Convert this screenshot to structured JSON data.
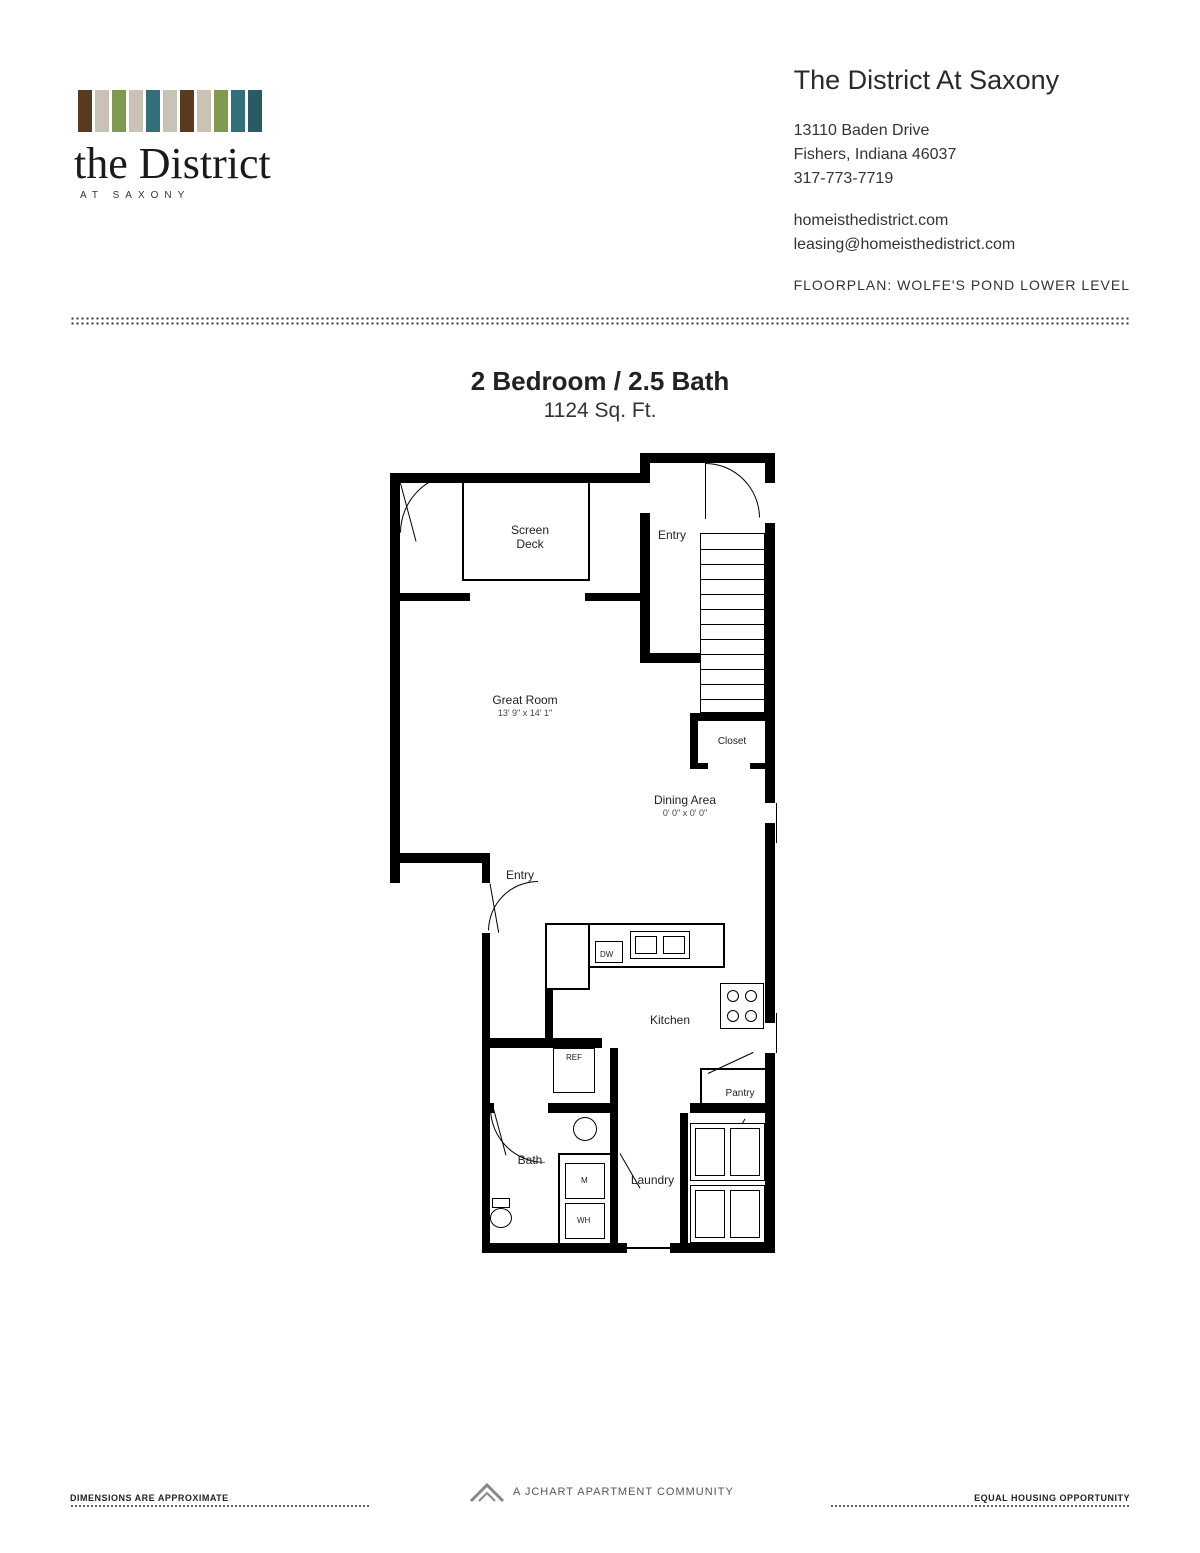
{
  "logo": {
    "bars": [
      "#5a3a1e",
      "#c9c3b5",
      "#7f9a4e",
      "#c9c3b5",
      "#326f7a",
      "#c9c3b5",
      "#5a3a1e",
      "#c9c3b5",
      "#7f9a4e",
      "#326f7a",
      "#2a5a63"
    ],
    "script": "the District",
    "sub": "AT SAXONY"
  },
  "info": {
    "title": "The District At Saxony",
    "addr1": "13110 Baden Drive",
    "addr2": "Fishers, Indiana 46037",
    "phone": "317-773-7719",
    "web": "homeisthedistrict.com",
    "email": "leasing@homeisthedistrict.com",
    "fpline": "FLOORPLAN: WOLFE'S POND LOWER LEVEL"
  },
  "plan": {
    "heading": "2 Bedroom / 2.5 Bath",
    "sqft": "1124 Sq. Ft."
  },
  "rooms": {
    "screen_deck": "Screen Deck",
    "entry1": "Entry",
    "great_room": "Great Room",
    "great_room_dim": "13' 9\" x 14' 1\"",
    "closet": "Closet",
    "dining": "Dining Area",
    "dining_dim": "0' 0\" x 0' 0\"",
    "entry2": "Entry",
    "kitchen": "Kitchen",
    "bath": "Bath",
    "laundry": "Laundry",
    "pantry": "Pantry",
    "dw": "DW",
    "ref": "REF",
    "m": "M",
    "wh": "WH"
  },
  "footer": {
    "left": "DIMENSIONS ARE APPROXIMATE",
    "center": "A JCHART APARTMENT COMMUNITY",
    "right": "EQUAL HOUSING OPPORTUNITY"
  }
}
